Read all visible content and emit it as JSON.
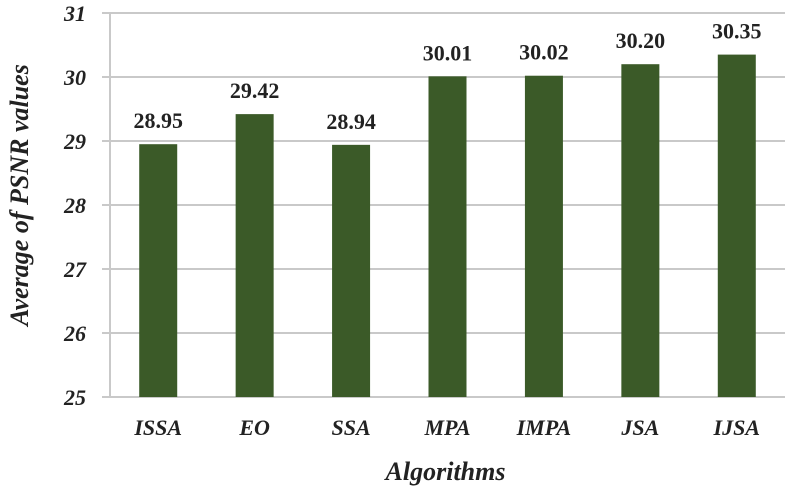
{
  "chart_data": {
    "type": "bar",
    "categories": [
      "ISSA",
      "EO",
      "SSA",
      "MPA",
      "IMPA",
      "JSA",
      "IJSA"
    ],
    "values": [
      28.95,
      29.42,
      28.94,
      30.01,
      30.02,
      30.2,
      30.35
    ],
    "value_labels": [
      "28.95",
      "29.42",
      "28.94",
      "30.01",
      "30.02",
      "30.20",
      "30.35"
    ],
    "ylim": [
      25,
      31
    ],
    "yticks": [
      "25",
      "26",
      "27",
      "28",
      "29",
      "30",
      "31"
    ],
    "xlabel": "Algorithms",
    "ylabel": "Average of PSNR values",
    "grid": true,
    "bar_color": "#3b5a28",
    "grid_color": "#c9c9c9"
  }
}
